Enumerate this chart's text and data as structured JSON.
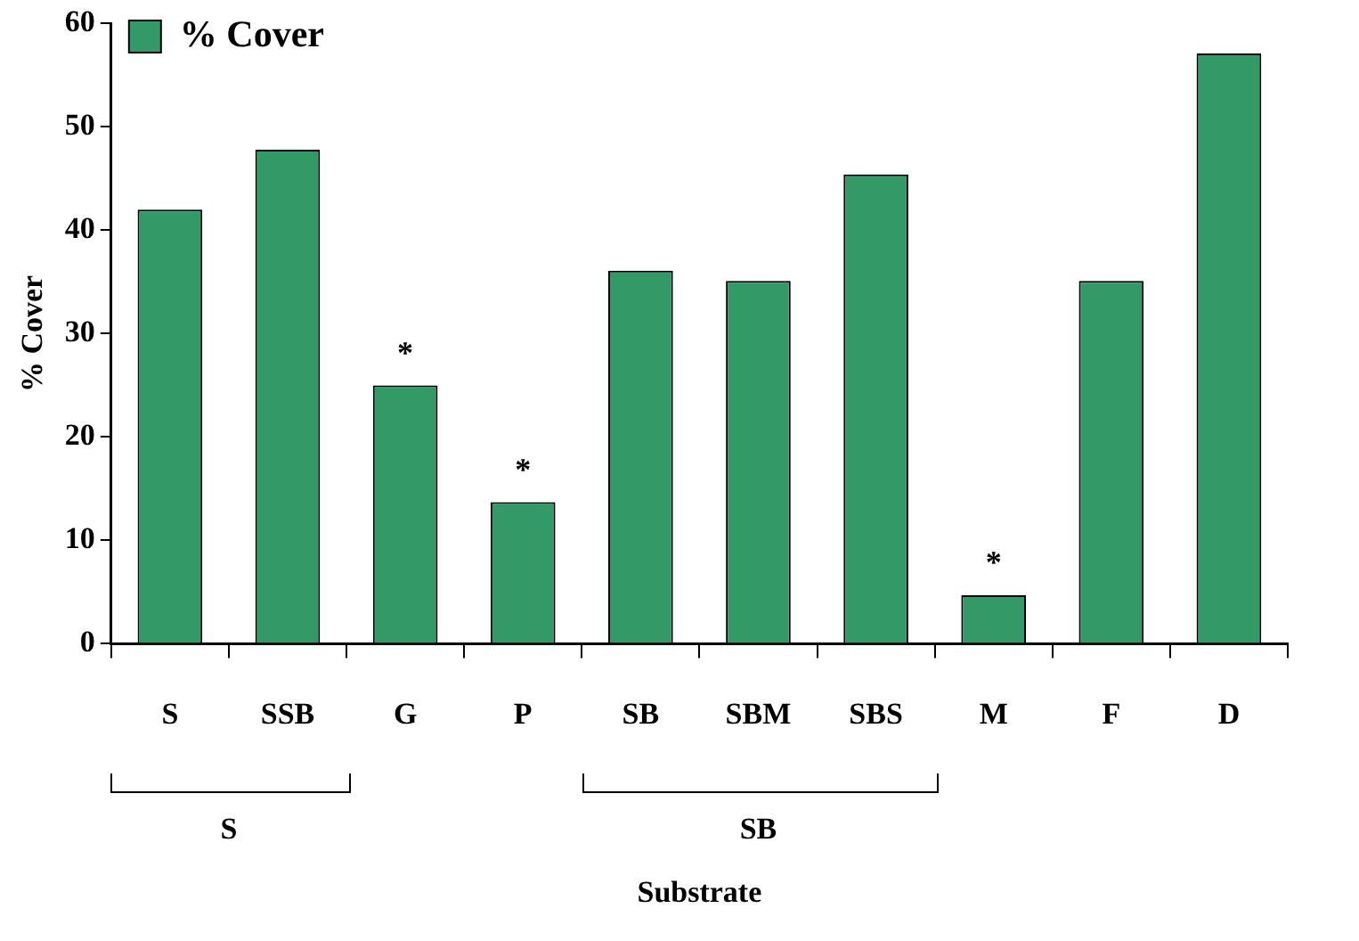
{
  "chart_data": {
    "type": "bar",
    "xlabel": "Substrate",
    "ylabel": "% Cover",
    "categories": [
      "S",
      "SSB",
      "G",
      "P",
      "SB",
      "SBM",
      "SBS",
      "M",
      "F",
      "D"
    ],
    "series": [
      {
        "name": "% Cover",
        "color": "#339966",
        "values": [
          42,
          47.8,
          25,
          13.7,
          36.1,
          35.1,
          45.4,
          4.7,
          35.1,
          57.1
        ]
      }
    ],
    "ylim": [
      0,
      60
    ],
    "yticks": [
      0,
      10,
      20,
      30,
      40,
      50,
      60
    ],
    "grid": false,
    "legend": "top left",
    "annotations": [
      {
        "text": "*",
        "x": "G",
        "y": 25
      },
      {
        "text": "*",
        "x": "P",
        "y": 13.7
      },
      {
        "text": "*",
        "x": "M",
        "y": 4.7
      },
      "S",
      "SB"
    ]
  }
}
